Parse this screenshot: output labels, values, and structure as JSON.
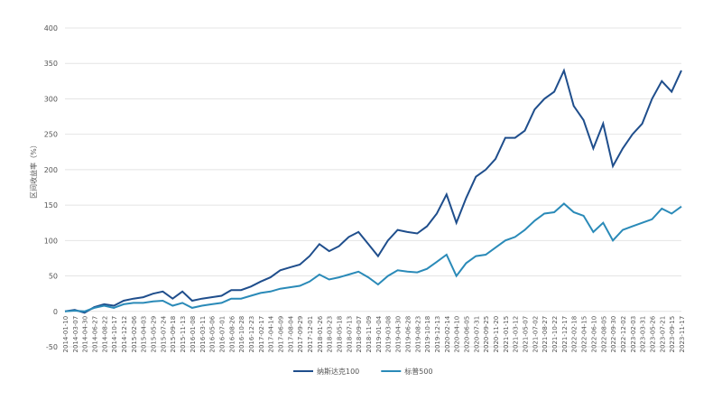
{
  "chart_data": {
    "type": "line",
    "y_label": "区间收益率（%）",
    "categories": [
      "2014-01-10",
      "2014-03-07",
      "2014-04-30",
      "2014-06-27",
      "2014-08-22",
      "2014-10-17",
      "2014-12-12",
      "2015-02-06",
      "2015-04-03",
      "2015-05-29",
      "2015-07-24",
      "2015-09-18",
      "2015-11-13",
      "2016-01-08",
      "2016-03-11",
      "2016-05-06",
      "2016-07-01",
      "2016-08-26",
      "2016-10-28",
      "2016-12-23",
      "2017-02-17",
      "2017-04-14",
      "2017-06-09",
      "2017-08-04",
      "2017-09-29",
      "2017-12-01",
      "2018-01-26",
      "2018-03-23",
      "2018-05-18",
      "2018-07-13",
      "2018-09-07",
      "2018-11-09",
      "2019-01-04",
      "2019-03-08",
      "2019-04-30",
      "2019-06-28",
      "2019-08-23",
      "2019-10-18",
      "2019-12-13",
      "2020-02-14",
      "2020-04-10",
      "2020-06-05",
      "2020-07-31",
      "2020-09-25",
      "2020-11-20",
      "2021-01-15",
      "2021-03-12",
      "2021-05-07",
      "2021-07-02",
      "2021-08-27",
      "2021-10-22",
      "2021-12-17",
      "2022-02-18",
      "2022-04-15",
      "2022-06-10",
      "2022-08-05",
      "2022-09-30",
      "2022-12-02",
      "2023-02-03",
      "2023-03-31",
      "2023-05-26",
      "2023-07-21",
      "2023-09-15",
      "2023-11-17"
    ],
    "series": [
      {
        "name": "纳斯达克100",
        "color": "#1f4e8c",
        "values": [
          0,
          2,
          -2,
          6,
          10,
          8,
          15,
          18,
          20,
          25,
          28,
          18,
          28,
          15,
          18,
          20,
          22,
          30,
          30,
          35,
          42,
          48,
          58,
          62,
          66,
          78,
          95,
          85,
          92,
          105,
          112,
          95,
          78,
          100,
          115,
          112,
          110,
          120,
          138,
          165,
          125,
          160,
          190,
          200,
          215,
          245,
          245,
          255,
          285,
          300,
          310,
          340,
          290,
          270,
          230,
          265,
          205,
          230,
          250,
          265,
          300,
          325,
          310,
          340
        ]
      },
      {
        "name": "标普500",
        "color": "#2a8ab8",
        "values": [
          0,
          1,
          0,
          5,
          8,
          5,
          10,
          12,
          12,
          14,
          15,
          8,
          12,
          5,
          8,
          10,
          12,
          18,
          18,
          22,
          26,
          28,
          32,
          34,
          36,
          42,
          52,
          45,
          48,
          52,
          56,
          48,
          38,
          50,
          58,
          56,
          55,
          60,
          70,
          80,
          50,
          68,
          78,
          80,
          90,
          100,
          105,
          115,
          128,
          138,
          140,
          152,
          140,
          135,
          112,
          125,
          100,
          115,
          120,
          125,
          130,
          145,
          138,
          148
        ]
      }
    ],
    "ylim": [
      -50,
      400
    ],
    "yticks": [
      -50,
      0,
      50,
      100,
      150,
      200,
      250,
      300,
      350,
      400
    ],
    "grid": true,
    "legend": "bottom"
  }
}
